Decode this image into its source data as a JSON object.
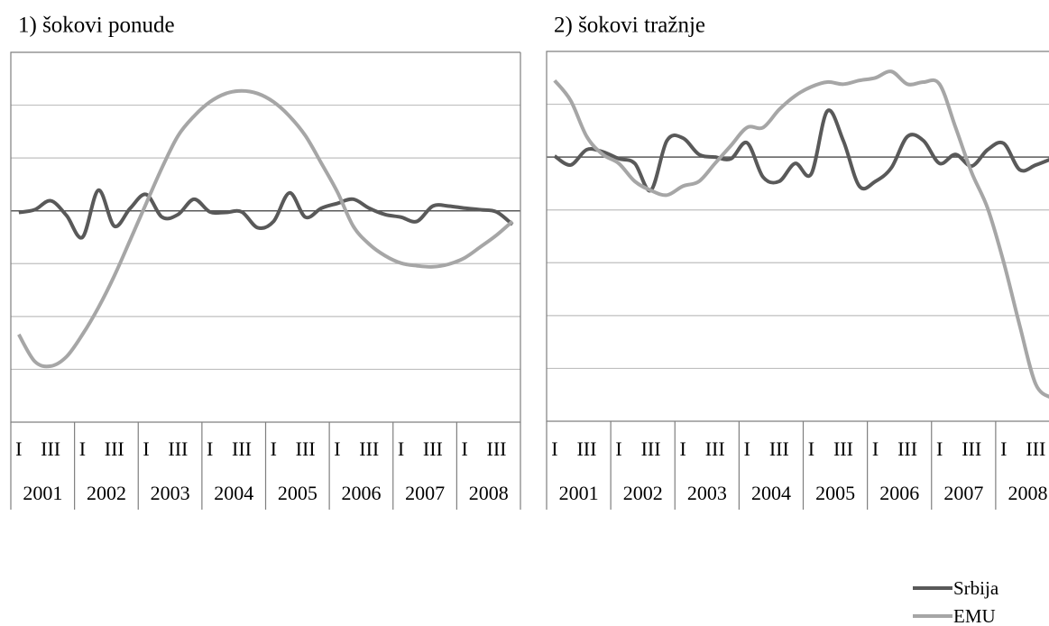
{
  "chart_data": [
    {
      "type": "line",
      "title": "1) šokovi ponude",
      "categories": [
        "I",
        null,
        "III",
        null,
        "I",
        null,
        "III",
        null,
        "I",
        null,
        "III",
        null,
        "I",
        null,
        "III",
        null,
        "I",
        null,
        "III",
        null,
        "I",
        null,
        "III",
        null,
        "I",
        null,
        "III",
        null,
        "I",
        null,
        "III",
        null
      ],
      "years": [
        "2001",
        "2002",
        "2003",
        "2004",
        "2005",
        "2006",
        "2007",
        "2008"
      ],
      "ylim": [
        -4,
        3
      ],
      "yticks": [
        -4,
        -3,
        -2,
        -1,
        0,
        1,
        2,
        3
      ],
      "grid": true,
      "legend": "bottom-right",
      "series": [
        {
          "name": "Srbija",
          "color": "#595959",
          "values": [
            -0.03,
            0.02,
            0.19,
            -0.09,
            -0.5,
            0.39,
            -0.29,
            0.05,
            0.31,
            -0.12,
            -0.07,
            0.22,
            -0.02,
            -0.03,
            -0.02,
            -0.32,
            -0.2,
            0.34,
            -0.12,
            0.05,
            0.14,
            0.22,
            0.05,
            -0.07,
            -0.12,
            -0.2,
            0.09,
            0.09,
            0.05,
            0.02,
            -0.02,
            -0.26
          ]
        },
        {
          "name": "EMU",
          "color": "#a6a6a6",
          "values": [
            -2.34,
            -2.85,
            -2.94,
            -2.76,
            -2.34,
            -1.83,
            -1.23,
            -0.55,
            0.14,
            0.82,
            1.42,
            1.79,
            2.06,
            2.22,
            2.27,
            2.22,
            2.06,
            1.79,
            1.42,
            0.9,
            0.36,
            -0.29,
            -0.63,
            -0.85,
            -0.99,
            -1.04,
            -1.06,
            -1.01,
            -0.89,
            -0.68,
            -0.46,
            -0.2
          ]
        }
      ]
    },
    {
      "type": "line",
      "title": "2) šokovi tražnje",
      "categories": [
        "I",
        null,
        "III",
        null,
        "I",
        null,
        "III",
        null,
        "I",
        null,
        "III",
        null,
        "I",
        null,
        "III",
        null,
        "I",
        null,
        "III",
        null,
        "I",
        null,
        "III",
        null,
        "I",
        null,
        "III",
        null,
        "I",
        null,
        "III",
        null
      ],
      "years": [
        "2001",
        "2002",
        "2003",
        "2004",
        "2005",
        "2006",
        "2007",
        "2008"
      ],
      "ylim": [
        -5,
        2
      ],
      "yticks": [
        -5,
        -4,
        -3,
        -2,
        -1,
        0,
        1,
        2
      ],
      "grid": true,
      "series": [
        {
          "name": "Srbija",
          "color": "#595959",
          "values": [
            0.02,
            -0.15,
            0.14,
            0.1,
            -0.03,
            -0.12,
            -0.63,
            0.31,
            0.36,
            0.05,
            0,
            -0.03,
            0.27,
            -0.38,
            -0.46,
            -0.12,
            -0.32,
            0.87,
            0.31,
            -0.55,
            -0.46,
            -0.2,
            0.39,
            0.31,
            -0.12,
            0.05,
            -0.17,
            0.14,
            0.26,
            -0.24,
            -0.15,
            -0.03
          ]
        },
        {
          "name": "EMU",
          "color": "#a6a6a6",
          "values": [
            1.45,
            1.07,
            0.39,
            0.05,
            -0.12,
            -0.46,
            -0.63,
            -0.72,
            -0.55,
            -0.46,
            -0.12,
            0.22,
            0.56,
            0.56,
            0.9,
            1.16,
            1.33,
            1.42,
            1.38,
            1.45,
            1.5,
            1.62,
            1.38,
            1.42,
            1.38,
            0.56,
            -0.29,
            -0.97,
            -1.99,
            -3.19,
            -4.3,
            -4.56
          ]
        }
      ]
    }
  ]
}
